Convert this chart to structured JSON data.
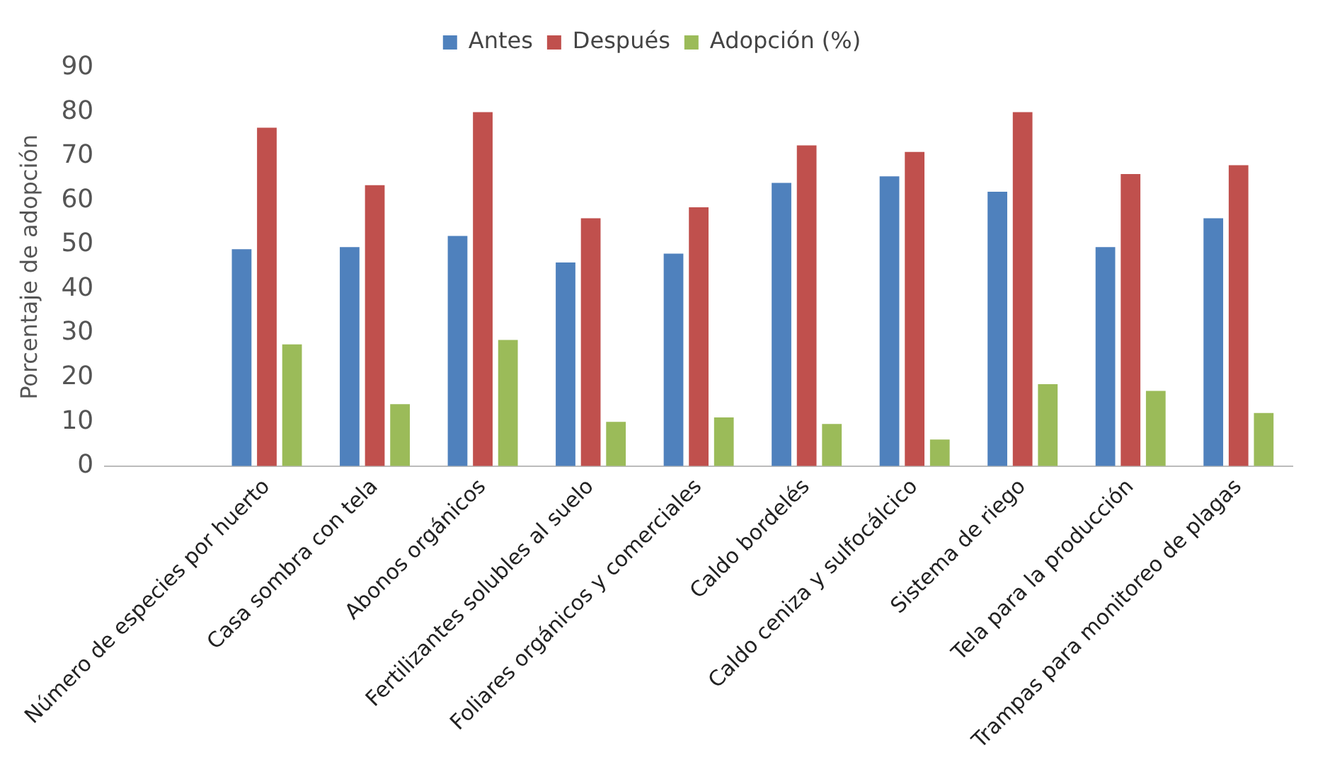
{
  "chart_data": {
    "type": "bar",
    "ylabel": "Porcentaje de adopción",
    "categories": [
      null,
      "Número de especies por huerto",
      "Casa sombra con tela",
      "Abonos orgánicos",
      "Fertilizantes solubles al suelo",
      "Foliares orgánicos y comerciales",
      "Caldo bordelés",
      "Caldo ceniza y sulfocálcico",
      "Sistema de riego",
      "Tela para la producción",
      "Trampas para monitoreo de plagas"
    ],
    "series": [
      {
        "name": "Antes",
        "color": "#4f81bd",
        "values": [
          null,
          49,
          49.5,
          52,
          46,
          48,
          64,
          65.5,
          62,
          49.5,
          56
        ]
      },
      {
        "name": "Después",
        "color": "#c0504d",
        "values": [
          null,
          76.5,
          63.5,
          80,
          56,
          58.5,
          72.5,
          71,
          80,
          66,
          68
        ]
      },
      {
        "name": "Adopción (%)",
        "color": "#9bbb59",
        "values": [
          null,
          27.5,
          14,
          28.5,
          10,
          11,
          9.5,
          6,
          18.5,
          17,
          12
        ]
      }
    ],
    "ylim": [
      0,
      90
    ],
    "yticks": [
      0,
      10,
      20,
      30,
      40,
      50,
      60,
      70,
      80,
      90
    ],
    "grid": false,
    "legend": "top"
  }
}
